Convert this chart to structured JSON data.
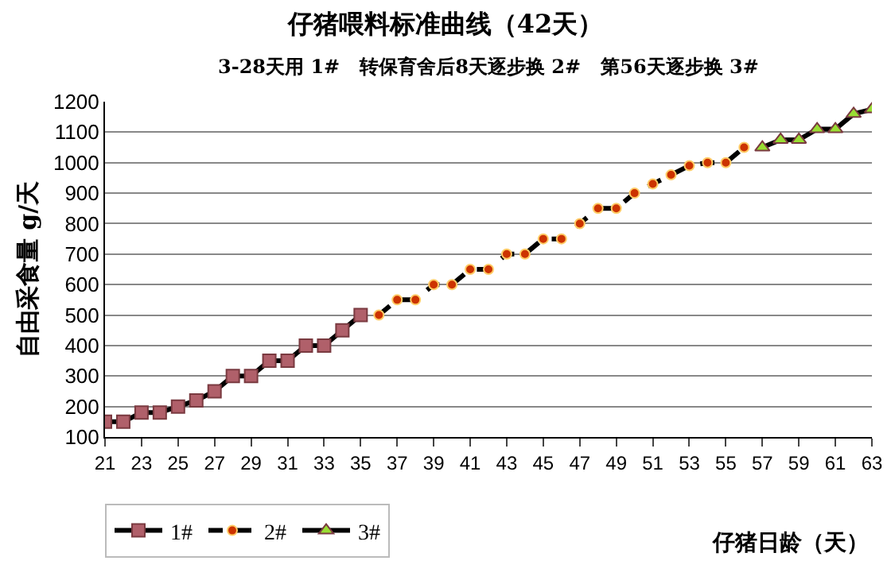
{
  "chart_data": {
    "type": "line",
    "title": "仔猪喂料标准曲线（42天）",
    "subtitle": "3-28天用 1#   转保育舍后8天逐步换 2#   第56天逐步换 3#",
    "xlabel": "仔猪日龄（天）",
    "ylabel": "自由采食量 g/天",
    "series": [
      {
        "name": "1#",
        "color": "#b0606a",
        "marker": "square",
        "line_style": "solid",
        "x": [
          21,
          22,
          23,
          24,
          25,
          26,
          27,
          28,
          29,
          30,
          31,
          32,
          33,
          34,
          35
        ],
        "values": [
          150,
          150,
          180,
          180,
          200,
          220,
          250,
          300,
          300,
          350,
          350,
          400,
          400,
          450,
          500
        ]
      },
      {
        "name": "2#",
        "color": "#cc3300",
        "marker": "circle",
        "line_style": "dashed",
        "x": [
          36,
          37,
          38,
          39,
          40,
          41,
          42,
          43,
          44,
          45,
          46,
          47,
          48,
          49,
          50,
          51,
          52,
          53,
          54,
          55,
          56
        ],
        "values": [
          500,
          550,
          550,
          600,
          600,
          650,
          650,
          700,
          700,
          750,
          750,
          800,
          850,
          850,
          900,
          930,
          960,
          990,
          1000,
          1000,
          1050
        ]
      },
      {
        "name": "3#",
        "color": "#99dd33",
        "marker": "triangle",
        "line_style": "solid",
        "x": [
          57,
          58,
          59,
          60,
          61,
          62,
          63
        ],
        "values": [
          1050,
          1075,
          1075,
          1110,
          1110,
          1160,
          1175
        ]
      }
    ],
    "xlim": [
      21,
      63
    ],
    "xticks": [
      21,
      23,
      25,
      27,
      29,
      31,
      33,
      35,
      37,
      39,
      41,
      43,
      45,
      47,
      49,
      51,
      53,
      55,
      57,
      59,
      61,
      63
    ],
    "ylim": [
      100,
      1200
    ],
    "yticks": [
      100,
      200,
      300,
      400,
      500,
      600,
      700,
      800,
      900,
      1000,
      1100,
      1200
    ],
    "grid": "y",
    "legend": "bottom left"
  }
}
